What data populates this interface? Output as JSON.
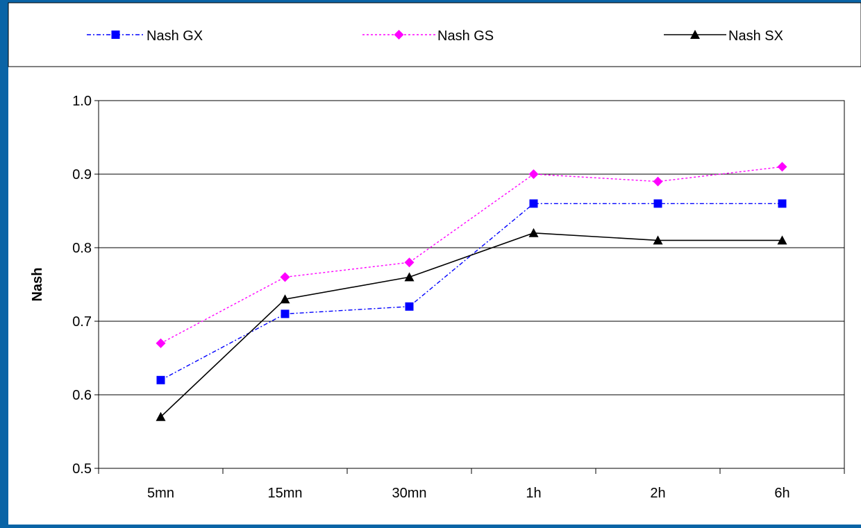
{
  "chart_data": {
    "type": "line",
    "categories": [
      "5mn",
      "15mn",
      "30mn",
      "1h",
      "2h",
      "6h"
    ],
    "series": [
      {
        "name": "Nash GX",
        "values": [
          0.62,
          0.71,
          0.72,
          0.86,
          0.86,
          0.86
        ],
        "color": "#0000FF",
        "line_style": "dash-dot",
        "marker": "square"
      },
      {
        "name": "Nash GS",
        "values": [
          0.67,
          0.76,
          0.78,
          0.9,
          0.89,
          0.91
        ],
        "color": "#FF00FF",
        "line_style": "dotted",
        "marker": "diamond"
      },
      {
        "name": "Nash SX",
        "values": [
          0.57,
          0.73,
          0.76,
          0.82,
          0.81,
          0.81
        ],
        "color": "#000000",
        "line_style": "solid",
        "marker": "triangle"
      }
    ],
    "title": "",
    "xlabel": "",
    "ylabel": "Nash",
    "ylim": [
      0.5,
      1.0
    ],
    "yticks": [
      "0.5",
      "0.6",
      "0.7",
      "0.8",
      "0.9",
      "1.0"
    ],
    "grid": "horizontal",
    "legend_position": "top",
    "frame_color": "#0A64A6",
    "background_color": "#FFFFFF"
  }
}
